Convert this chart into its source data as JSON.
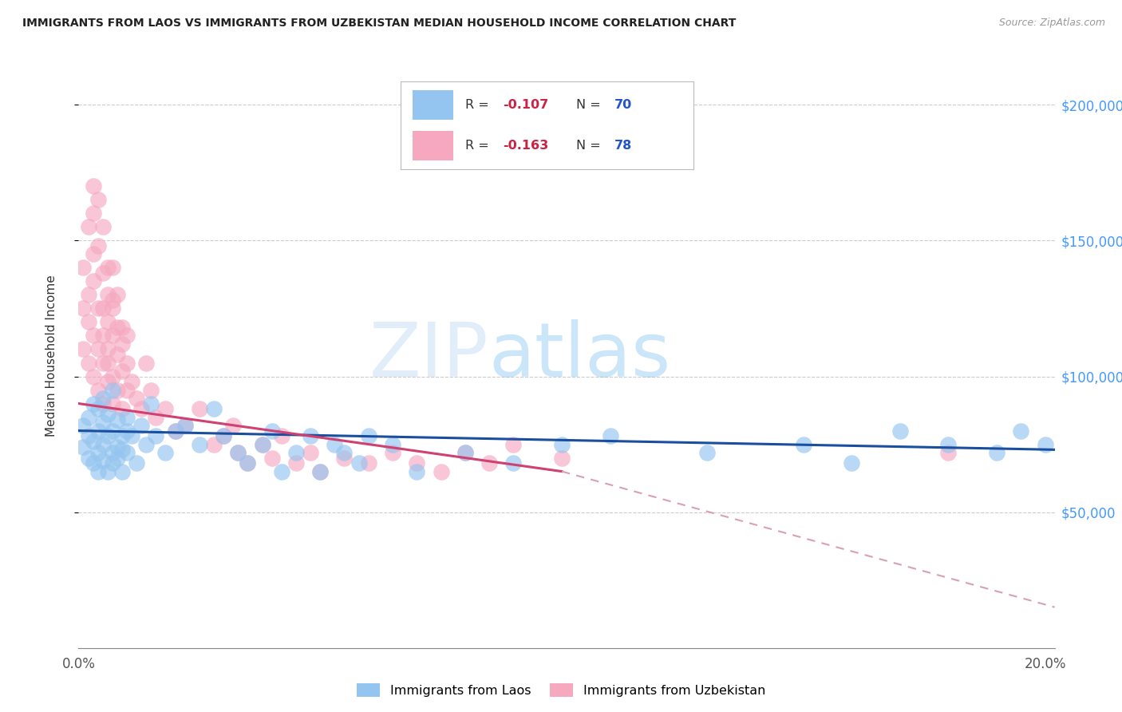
{
  "title": "IMMIGRANTS FROM LAOS VS IMMIGRANTS FROM UZBEKISTAN MEDIAN HOUSEHOLD INCOME CORRELATION CHART",
  "source": "Source: ZipAtlas.com",
  "ylabel": "Median Household Income",
  "xlim": [
    0.0,
    0.202
  ],
  "ylim": [
    0,
    215000
  ],
  "xticks": [
    0.0,
    0.05,
    0.1,
    0.15,
    0.2
  ],
  "xtick_labels": [
    "0.0%",
    "",
    "",
    "",
    "20.0%"
  ],
  "ytick_vals": [
    50000,
    100000,
    150000,
    200000
  ],
  "ytick_labels": [
    "$50,000",
    "$100,000",
    "$150,000",
    "$200,000"
  ],
  "watermark": "ZIPatlas",
  "legend_r_laos": "-0.107",
  "legend_n_laos": "70",
  "legend_r_uzbekistan": "-0.163",
  "legend_n_uzbekistan": "78",
  "color_laos": "#94C4F0",
  "color_uzbekistan": "#F5A8C0",
  "trendline_color_laos": "#1A4FA0",
  "trendline_color_uzbekistan": "#D04070",
  "trendline_dashed_color": "#D8A0B0",
  "background_color": "#FFFFFF",
  "laos_trendline_x0": 0.0,
  "laos_trendline_y0": 80000,
  "laos_trendline_x1": 0.202,
  "laos_trendline_y1": 73000,
  "uzbek_trendline_solid_x0": 0.0,
  "uzbek_trendline_solid_y0": 90000,
  "uzbek_trendline_solid_x1": 0.1,
  "uzbek_trendline_solid_y1": 65000,
  "uzbek_trendline_dashed_x0": 0.1,
  "uzbek_trendline_dashed_y0": 65000,
  "uzbek_trendline_dashed_x1": 0.202,
  "uzbek_trendline_dashed_y1": 15000,
  "laos_x": [
    0.001,
    0.001,
    0.002,
    0.002,
    0.002,
    0.003,
    0.003,
    0.003,
    0.004,
    0.004,
    0.004,
    0.004,
    0.005,
    0.005,
    0.005,
    0.005,
    0.006,
    0.006,
    0.006,
    0.007,
    0.007,
    0.007,
    0.007,
    0.008,
    0.008,
    0.008,
    0.009,
    0.009,
    0.009,
    0.01,
    0.01,
    0.01,
    0.011,
    0.012,
    0.013,
    0.014,
    0.015,
    0.016,
    0.018,
    0.02,
    0.022,
    0.025,
    0.028,
    0.03,
    0.033,
    0.035,
    0.038,
    0.04,
    0.042,
    0.045,
    0.048,
    0.05,
    0.053,
    0.055,
    0.058,
    0.06,
    0.065,
    0.07,
    0.08,
    0.09,
    0.1,
    0.11,
    0.13,
    0.15,
    0.16,
    0.17,
    0.18,
    0.19,
    0.195,
    0.2
  ],
  "laos_y": [
    82000,
    74000,
    78000,
    70000,
    85000,
    90000,
    68000,
    76000,
    72000,
    88000,
    65000,
    80000,
    75000,
    83000,
    69000,
    92000,
    78000,
    65000,
    86000,
    72000,
    80000,
    68000,
    95000,
    74000,
    70000,
    84000,
    78000,
    65000,
    73000,
    80000,
    72000,
    85000,
    78000,
    68000,
    82000,
    75000,
    90000,
    78000,
    72000,
    80000,
    82000,
    75000,
    88000,
    78000,
    72000,
    68000,
    75000,
    80000,
    65000,
    72000,
    78000,
    65000,
    75000,
    72000,
    68000,
    78000,
    75000,
    65000,
    72000,
    68000,
    75000,
    78000,
    72000,
    75000,
    68000,
    80000,
    75000,
    72000,
    80000,
    75000
  ],
  "uzbekistan_x": [
    0.001,
    0.001,
    0.001,
    0.002,
    0.002,
    0.002,
    0.002,
    0.003,
    0.003,
    0.003,
    0.003,
    0.003,
    0.003,
    0.004,
    0.004,
    0.004,
    0.004,
    0.004,
    0.005,
    0.005,
    0.005,
    0.005,
    0.005,
    0.005,
    0.006,
    0.006,
    0.006,
    0.006,
    0.006,
    0.006,
    0.007,
    0.007,
    0.007,
    0.007,
    0.007,
    0.007,
    0.008,
    0.008,
    0.008,
    0.008,
    0.009,
    0.009,
    0.009,
    0.009,
    0.01,
    0.01,
    0.01,
    0.011,
    0.012,
    0.013,
    0.014,
    0.015,
    0.016,
    0.018,
    0.02,
    0.022,
    0.025,
    0.028,
    0.03,
    0.032,
    0.033,
    0.035,
    0.038,
    0.04,
    0.042,
    0.045,
    0.048,
    0.05,
    0.055,
    0.06,
    0.065,
    0.07,
    0.075,
    0.08,
    0.085,
    0.09,
    0.1,
    0.18
  ],
  "uzbekistan_y": [
    110000,
    125000,
    140000,
    130000,
    155000,
    105000,
    120000,
    160000,
    145000,
    170000,
    115000,
    135000,
    100000,
    148000,
    125000,
    110000,
    165000,
    95000,
    138000,
    115000,
    125000,
    105000,
    155000,
    90000,
    120000,
    110000,
    98000,
    140000,
    130000,
    105000,
    125000,
    115000,
    100000,
    140000,
    128000,
    90000,
    118000,
    108000,
    95000,
    130000,
    112000,
    102000,
    88000,
    118000,
    105000,
    95000,
    115000,
    98000,
    92000,
    88000,
    105000,
    95000,
    85000,
    88000,
    80000,
    82000,
    88000,
    75000,
    78000,
    82000,
    72000,
    68000,
    75000,
    70000,
    78000,
    68000,
    72000,
    65000,
    70000,
    68000,
    72000,
    68000,
    65000,
    72000,
    68000,
    75000,
    70000,
    72000
  ]
}
